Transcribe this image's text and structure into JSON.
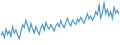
{
  "chart_data": {
    "type": "line",
    "color": "#4a9ad4",
    "grid": false,
    "tick_labels": false,
    "x": [
      0,
      1,
      2,
      3,
      4,
      5,
      6,
      7,
      8,
      9,
      10,
      11,
      12,
      13,
      14,
      15,
      16,
      17,
      18,
      19,
      20,
      21,
      22,
      23,
      24,
      25,
      26,
      27,
      28,
      29,
      30,
      31,
      32,
      33,
      34,
      35,
      36,
      37,
      38,
      39,
      40,
      41,
      42,
      43,
      44,
      45,
      46,
      47,
      48,
      49,
      50,
      51,
      52,
      53,
      54,
      55,
      56,
      57,
      58,
      59,
      60,
      61,
      62,
      63,
      64,
      65,
      66,
      67,
      68,
      69,
      70,
      71
    ],
    "values": [
      20,
      28,
      15,
      35,
      22,
      30,
      18,
      40,
      25,
      33,
      20,
      12,
      28,
      45,
      38,
      55,
      42,
      30,
      48,
      35,
      25,
      40,
      30,
      22,
      38,
      45,
      32,
      50,
      40,
      35,
      45,
      38,
      30,
      42,
      48,
      40,
      55,
      45,
      38,
      50,
      60,
      48,
      42,
      55,
      50,
      45,
      58,
      52,
      62,
      55,
      48,
      60,
      70,
      58,
      65,
      55,
      62,
      75,
      68,
      90,
      60,
      72,
      95,
      70,
      80,
      65,
      75,
      60,
      85,
      72,
      78,
      70
    ],
    "xlim": [
      0,
      71
    ],
    "ylim": [
      0,
      100
    ]
  }
}
